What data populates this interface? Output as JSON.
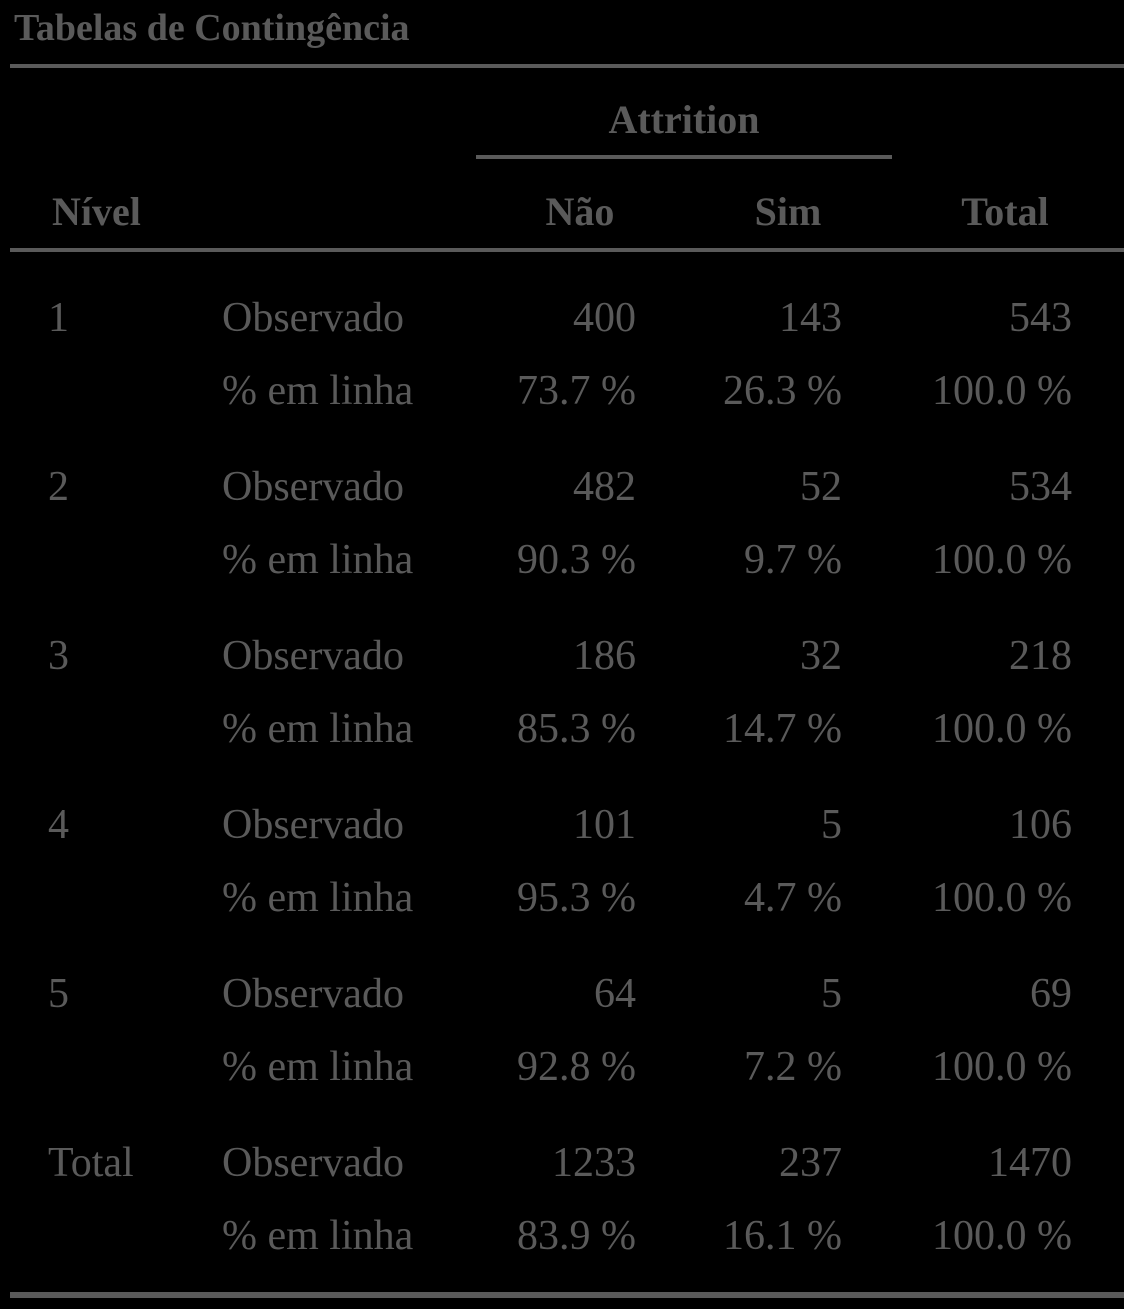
{
  "table": {
    "title": "Tabelas de Contingência",
    "group_header": "Attrition",
    "columns": {
      "level": "Nível",
      "nao": "Não",
      "sim": "Sim",
      "total": "Total"
    },
    "rows": [
      {
        "level": "1",
        "observed": {
          "label": "Observado",
          "nao": "400",
          "sim": "143",
          "total": "543"
        },
        "row_pct": {
          "label": "% em linha",
          "nao": "73.7 %",
          "sim": "26.3 %",
          "total": "100.0 %"
        }
      },
      {
        "level": "2",
        "observed": {
          "label": "Observado",
          "nao": "482",
          "sim": "52",
          "total": "534"
        },
        "row_pct": {
          "label": "% em linha",
          "nao": "90.3 %",
          "sim": "9.7 %",
          "total": "100.0 %"
        }
      },
      {
        "level": "3",
        "observed": {
          "label": "Observado",
          "nao": "186",
          "sim": "32",
          "total": "218"
        },
        "row_pct": {
          "label": "% em linha",
          "nao": "85.3 %",
          "sim": "14.7 %",
          "total": "100.0 %"
        }
      },
      {
        "level": "4",
        "observed": {
          "label": "Observado",
          "nao": "101",
          "sim": "5",
          "total": "106"
        },
        "row_pct": {
          "label": "% em linha",
          "nao": "95.3 %",
          "sim": "4.7 %",
          "total": "100.0 %"
        }
      },
      {
        "level": "5",
        "observed": {
          "label": "Observado",
          "nao": "64",
          "sim": "5",
          "total": "69"
        },
        "row_pct": {
          "label": "% em linha",
          "nao": "92.8 %",
          "sim": "7.2 %",
          "total": "100.0 %"
        }
      },
      {
        "level": "Total",
        "observed": {
          "label": "Observado",
          "nao": "1233",
          "sim": "237",
          "total": "1470"
        },
        "row_pct": {
          "label": "% em linha",
          "nao": "83.9 %",
          "sim": "16.1 %",
          "total": "100.0 %"
        }
      }
    ]
  },
  "colors": {
    "background": "#000000",
    "text": "#5a5a5a",
    "rule": "#5a5a5a"
  }
}
